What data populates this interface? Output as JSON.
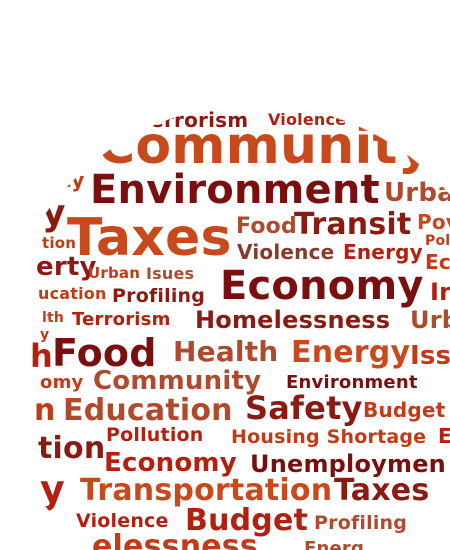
{
  "colors": {
    "dark_red": "#7a0f0f",
    "red": "#b3200f",
    "orange_red": "#c23b16",
    "orange": "#d0561c",
    "brown": "#8a3a2a",
    "rust": "#b04a2c"
  },
  "words": [
    {
      "text": "Terrorism",
      "color": "#8a1a12"
    },
    {
      "text": "Violence",
      "color": "#b3200f"
    },
    {
      "text": "Community",
      "color": "#c7491c"
    },
    {
      "text": "cy",
      "color": "#8a1a12"
    },
    {
      "text": "Tr",
      "color": "#8a3a2a"
    },
    {
      "text": "nity",
      "color": "#c23b16"
    },
    {
      "text": "Environment",
      "color": "#7a0f0f"
    },
    {
      "text": "Urba",
      "color": "#b04a2c"
    },
    {
      "text": "y",
      "color": "#8a1a12"
    },
    {
      "text": "tion",
      "color": "#c23b16"
    },
    {
      "text": "Taxes",
      "color": "#c7491c"
    },
    {
      "text": "Food",
      "color": "#b04a2c"
    },
    {
      "text": "Transit",
      "color": "#8a1a12"
    },
    {
      "text": "Pov",
      "color": "#c7491c"
    },
    {
      "text": "Pol",
      "color": "#c23b16"
    },
    {
      "text": "Violence",
      "color": "#8a3a2a"
    },
    {
      "text": "Energy",
      "color": "#b3200f"
    },
    {
      "text": "Ec",
      "color": "#c23b16"
    },
    {
      "text": "erty",
      "color": "#8a1a12"
    },
    {
      "text": "Urban",
      "color": "#c23b16"
    },
    {
      "text": "Isues",
      "color": "#b04a2c"
    },
    {
      "text": "Economy",
      "color": "#7a0f0f"
    },
    {
      "text": "In",
      "color": "#b3200f"
    },
    {
      "text": "ucation",
      "color": "#c23b16"
    },
    {
      "text": "Profiling",
      "color": "#8a1a12"
    },
    {
      "text": "lth",
      "color": "#c23b16"
    },
    {
      "text": "Terrorism",
      "color": "#b3200f"
    },
    {
      "text": "Homelessness",
      "color": "#8a1a12"
    },
    {
      "text": "Urb",
      "color": "#b04a2c"
    },
    {
      "text": "y",
      "color": "#c23b16"
    },
    {
      "text": "h",
      "color": "#b3200f"
    },
    {
      "text": "Food",
      "color": "#7a0f0f"
    },
    {
      "text": "Health",
      "color": "#b04a2c"
    },
    {
      "text": "Energy",
      "color": "#c7491c"
    },
    {
      "text": "Iss",
      "color": "#c23b16"
    },
    {
      "text": "omy",
      "color": "#c23b16"
    },
    {
      "text": "Community",
      "color": "#b04a2c"
    },
    {
      "text": "Environment",
      "color": "#7a0f0f"
    },
    {
      "text": "n",
      "color": "#c23b16"
    },
    {
      "text": "Education",
      "color": "#b04a2c"
    },
    {
      "text": "Safety",
      "color": "#8a1a12"
    },
    {
      "text": "Budget",
      "color": "#c23b16"
    },
    {
      "text": "Pollution",
      "color": "#b3200f"
    },
    {
      "text": "Housing Shortage",
      "color": "#c23b16"
    },
    {
      "text": "E",
      "color": "#b3200f"
    },
    {
      "text": "tion",
      "color": "#8a1a12"
    },
    {
      "text": "Economy",
      "color": "#b3200f"
    },
    {
      "text": "Unemploymen",
      "color": "#7a0f0f"
    },
    {
      "text": "y",
      "color": "#b3200f"
    },
    {
      "text": "Transportation",
      "color": "#c7491c"
    },
    {
      "text": "Taxes",
      "color": "#8a1a12"
    },
    {
      "text": "Violence",
      "color": "#b3200f"
    },
    {
      "text": "Budget",
      "color": "#b3200f"
    },
    {
      "text": "Profiling",
      "color": "#b04a2c"
    },
    {
      "text": "elessness",
      "color": "#c23b16"
    },
    {
      "text": "Energ",
      "color": "#b04a2c"
    }
  ]
}
